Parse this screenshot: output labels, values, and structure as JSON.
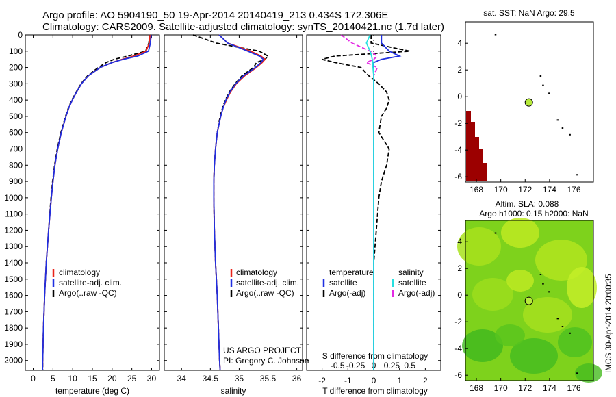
{
  "title": {
    "line1": "Argo profile: AO 5904190_50 19-Apr-2014 20140419_213 0.434S 172.306E",
    "line2": "Climatology: CARS2009. Satellite-adjusted climatology: synTS_20140421.nc (1.7d later)"
  },
  "colors": {
    "climatology": "#e8231a",
    "satellite": "#1f2fe0",
    "argo": "#000000",
    "cyan": "#27e0e0",
    "magenta": "#e42ae4",
    "land": "#9c0000",
    "marker": "#b6ea3a"
  },
  "panels": {
    "temperature": {
      "xlabel": "temperature (deg C)",
      "xticks": [
        "0",
        "5",
        "10",
        "15",
        "20",
        "25",
        "30"
      ],
      "xlim": [
        -2,
        32
      ],
      "legend": [
        "climatology",
        "satellite-adj. clim.",
        "Argo(..raw -QC)"
      ]
    },
    "salinity": {
      "xlabel": "salinity",
      "xticks": [
        "34",
        "34.5",
        "35",
        "35.5",
        "36"
      ],
      "xlim": [
        33.7,
        36.1
      ],
      "legend": [
        "climatology",
        "satellite-adj. clim.",
        "Argo(..raw -QC)"
      ],
      "project_line1": "US ARGO PROJECT",
      "project_line2": "PI: Gregory C. Johnson"
    },
    "difference": {
      "legend_t_header": "temperature",
      "legend_s_header": "salinity",
      "legend_t": [
        "satellite",
        "Argo(-adj)"
      ],
      "legend_s": [
        "satellite",
        "Argo(-adj)"
      ],
      "s_label": "S difference from climatology",
      "s_ticks": [
        "-0.5",
        "-0.25",
        "0",
        "0.25",
        "0.5"
      ],
      "t_label": "T difference from climatology",
      "t_ticks": [
        "-2",
        "-1",
        "0",
        "1",
        "2"
      ],
      "xlim": [
        -2.6,
        2.6
      ]
    },
    "depth_ticks": [
      "0",
      "100",
      "200",
      "300",
      "400",
      "500",
      "600",
      "700",
      "800",
      "900",
      "1000",
      "1100",
      "1200",
      "1300",
      "1400",
      "1500",
      "1600",
      "1700",
      "1800",
      "1900",
      "2000"
    ],
    "ylim": [
      0,
      2060
    ]
  },
  "sst_map": {
    "title": "sat. SST: NaN Argo: 29.5",
    "xticks": [
      "168",
      "170",
      "172",
      "174",
      "176"
    ],
    "yticks": [
      "4",
      "2",
      "0",
      "-2",
      "-4",
      "-6"
    ],
    "xlim": [
      167.1,
      177.6
    ],
    "ylim": [
      -6.4,
      5.6
    ],
    "argo_position": {
      "lon": 172.306,
      "lat": -0.434
    }
  },
  "sla_map": {
    "title_line1": "Altim. SLA: 0.088",
    "title_line2": "Argo h1000: 0.15 h2000: NaN",
    "xticks": [
      "168",
      "170",
      "172",
      "174",
      "176"
    ],
    "yticks": [
      "4",
      "2",
      "0",
      "-2",
      "-4",
      "-6"
    ],
    "xlim": [
      167.1,
      177.6
    ],
    "ylim": [
      -6.4,
      5.6
    ],
    "argo_position": {
      "lon": 172.306,
      "lat": -0.434
    }
  },
  "side_label": "IMOS 30-Apr-2014 20:00:35",
  "chart_data": {
    "type": "line",
    "depth": [
      0,
      50,
      100,
      130,
      150,
      170,
      200,
      250,
      300,
      350,
      400,
      450,
      500,
      600,
      700,
      800,
      900,
      1000,
      1200,
      1400,
      1600,
      1800,
      2000,
      2060
    ],
    "temperature": {
      "climatology": [
        29.6,
        29.4,
        28.6,
        25.5,
        22.5,
        20.0,
        17.0,
        14.0,
        12.2,
        11.0,
        9.9,
        9.0,
        8.3,
        7.1,
        6.2,
        5.5,
        5.0,
        4.6,
        3.9,
        3.3,
        2.9,
        2.6,
        2.4,
        2.35
      ],
      "satellite": [
        29.9,
        29.7,
        29.2,
        26.5,
        22.8,
        20.0,
        17.0,
        14.0,
        12.2,
        11.0,
        9.9,
        9.0,
        8.3,
        7.1,
        6.2,
        5.5,
        5.0,
        4.6,
        3.9,
        3.3,
        2.9,
        2.6,
        2.4,
        2.35
      ],
      "argo": [
        29.5,
        29.3,
        28.5,
        24.0,
        20.5,
        18.5,
        16.5,
        13.8,
        12.1,
        10.9,
        9.8,
        8.9,
        8.2,
        7.0,
        6.1,
        5.4,
        4.9,
        4.5,
        3.9,
        3.3,
        2.9,
        2.6,
        2.4,
        2.4
      ]
    },
    "salinity": {
      "climatology": [
        34.65,
        34.8,
        35.2,
        35.38,
        35.45,
        35.4,
        35.3,
        35.1,
        34.95,
        34.85,
        34.78,
        34.72,
        34.68,
        34.62,
        34.59,
        34.57,
        34.56,
        34.56,
        34.57,
        34.59,
        34.62,
        34.64,
        34.66,
        34.67
      ],
      "satellite": [
        34.65,
        34.8,
        35.15,
        35.35,
        35.42,
        35.38,
        35.28,
        35.08,
        34.94,
        34.84,
        34.77,
        34.72,
        34.68,
        34.62,
        34.59,
        34.57,
        34.56,
        34.56,
        34.57,
        34.59,
        34.62,
        34.64,
        34.66,
        34.67
      ],
      "argo": [
        34.2,
        34.6,
        35.35,
        35.5,
        35.45,
        35.3,
        35.25,
        35.05,
        34.93,
        34.83,
        34.76,
        34.71,
        34.67,
        34.62,
        34.59,
        34.57,
        34.56,
        34.56,
        34.57,
        34.59,
        34.62,
        34.64,
        34.66,
        34.67
      ]
    },
    "difference": {
      "t_satellite": [
        0.3,
        0.3,
        0.6,
        1.0,
        0.3,
        0.0,
        0.0,
        0.0,
        0.0,
        0.0,
        0.0,
        0.0,
        0.0,
        0.0,
        0.0,
        0.0,
        0.0,
        0.0,
        0.0,
        0.0,
        0.0,
        0.0,
        0.0,
        0.0
      ],
      "t_argo": [
        -0.1,
        -0.1,
        1.4,
        -1.5,
        -2.0,
        -1.5,
        -0.5,
        -0.2,
        0.2,
        0.5,
        0.6,
        0.5,
        0.3,
        0.2,
        0.6,
        0.5,
        0.3,
        0.2,
        0.1,
        0.0,
        0.0,
        0.0,
        0.0,
        0.0
      ],
      "s_satellite": [
        -0.05,
        -0.1,
        -0.05,
        -0.03,
        -0.02,
        -0.01,
        -0.01,
        0.0,
        0.0,
        0.0,
        0.0,
        0.0,
        0.0,
        0.0,
        0.0,
        0.0,
        0.0,
        0.0,
        0.0,
        0.0,
        0.0,
        0.0,
        0.0,
        0.0
      ],
      "s_argo": [
        -0.45,
        -0.3,
        -0.05,
        0.05,
        0.0,
        -0.1,
        0.05,
        0.0,
        0.0,
        0.0,
        0.0,
        0.0,
        0.0,
        0.0,
        0.0,
        0.0,
        0.0,
        0.0,
        0.0,
        0.0,
        0.0,
        0.0,
        0.0,
        0.0
      ]
    }
  }
}
